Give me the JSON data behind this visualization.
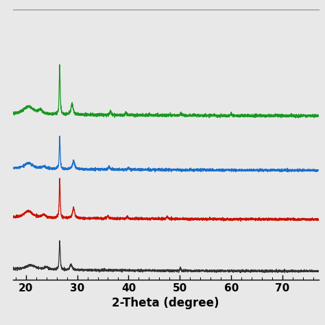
{
  "xlabel": "2-Theta (degree)",
  "xlim": [
    17.5,
    77
  ],
  "xticks": [
    20,
    30,
    40,
    50,
    60,
    70
  ],
  "colors": [
    "#333333",
    "#cc1100",
    "#1a6fcc",
    "#1a9922"
  ],
  "offsets": [
    0.0,
    0.95,
    1.85,
    2.85
  ],
  "background_color": "#e8e8e8",
  "xlabel_fontsize": 12,
  "xlabel_fontweight": "bold",
  "noise_level_base": 0.012,
  "line_width": 0.9
}
